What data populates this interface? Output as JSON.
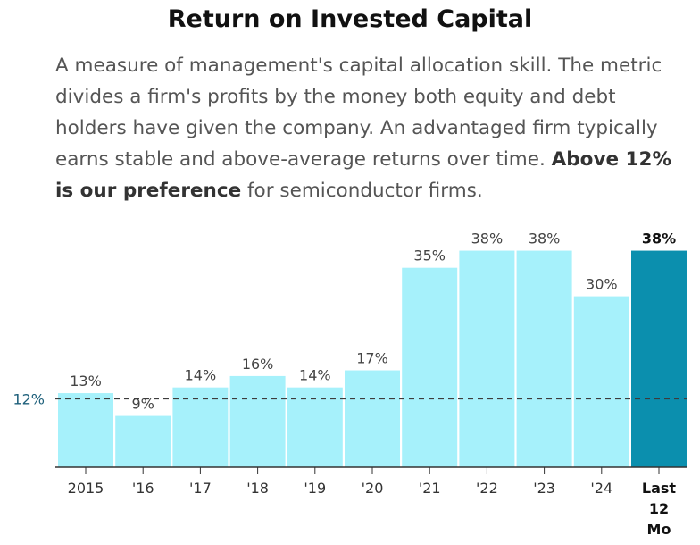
{
  "header": {
    "title": "Return on Invested Capital",
    "description": "A measure of management's capital allocation skill. The metric divides a firm's profits by the money both equity and debt holders have given the company. An advantaged firm typically earns stable and above-average returns over time. ",
    "description_bold": "Above 12% is our preference",
    "description_end": " for semiconductor firms."
  },
  "colors": {
    "bar": "#a6f1fb",
    "highlight_bar": "#0b8fae",
    "reference_line": "#3c3c3c"
  },
  "chart_data": {
    "type": "bar",
    "title": "Return on Invested Capital",
    "categories": [
      "2015",
      "'16",
      "'17",
      "'18",
      "'19",
      "'20",
      "'21",
      "'22",
      "'23",
      "'24",
      "Last 12 Mo"
    ],
    "category_lines": [
      [
        "2015"
      ],
      [
        "'16"
      ],
      [
        "'17"
      ],
      [
        "'18"
      ],
      [
        "'19"
      ],
      [
        "'20"
      ],
      [
        "'21"
      ],
      [
        "'22"
      ],
      [
        "'23"
      ],
      [
        "'24"
      ],
      [
        "Last",
        "12",
        "Mo"
      ]
    ],
    "values": [
      13,
      9,
      14,
      16,
      14,
      17,
      35,
      38,
      38,
      30,
      38
    ],
    "value_labels": [
      "13%",
      "9%",
      "14%",
      "16%",
      "14%",
      "17%",
      "35%",
      "38%",
      "38%",
      "30%",
      "38%"
    ],
    "highlight_index": 10,
    "reference_line": {
      "value": 12,
      "label": "12%"
    },
    "ylim": [
      0,
      40
    ],
    "xlabel": "",
    "ylabel": "",
    "grid": false
  }
}
